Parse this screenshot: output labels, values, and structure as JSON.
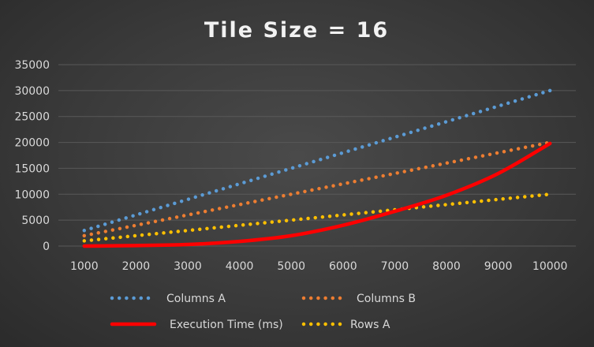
{
  "chart_data": {
    "type": "line",
    "title": "Tile Size = 16",
    "xlabel": "",
    "ylabel": "",
    "x": [
      1000,
      2000,
      3000,
      4000,
      5000,
      6000,
      7000,
      8000,
      9000,
      10000
    ],
    "x_tick_labels": [
      "1000",
      "2000",
      "3000",
      "4000",
      "5000",
      "6000",
      "7000",
      "8000",
      "9000",
      "10000"
    ],
    "y_tick_labels": [
      "0",
      "5000",
      "10000",
      "15000",
      "20000",
      "25000",
      "30000",
      "35000"
    ],
    "ylim": [
      0,
      35000
    ],
    "grid": true,
    "legend_position": "bottom",
    "series": [
      {
        "name": "Columns A",
        "style": "dotted",
        "color": "#5b9bd5",
        "values": [
          3000,
          6000,
          9000,
          12000,
          15000,
          18000,
          21000,
          24000,
          27000,
          30000
        ]
      },
      {
        "name": "Columns B",
        "style": "dotted",
        "color": "#ed7d31",
        "values": [
          2000,
          4000,
          6000,
          8000,
          10000,
          12000,
          14000,
          16000,
          18000,
          20000
        ]
      },
      {
        "name": "Execution Time (ms)",
        "style": "solid",
        "color": "#ff0000",
        "values": [
          0,
          100,
          300,
          900,
          2000,
          4000,
          6700,
          9800,
          14000,
          19800
        ]
      },
      {
        "name": "Rows A",
        "style": "dotted",
        "color": "#ffc000",
        "values": [
          1000,
          2000,
          3000,
          4000,
          5000,
          6000,
          7000,
          8000,
          9000,
          10000
        ]
      }
    ]
  }
}
